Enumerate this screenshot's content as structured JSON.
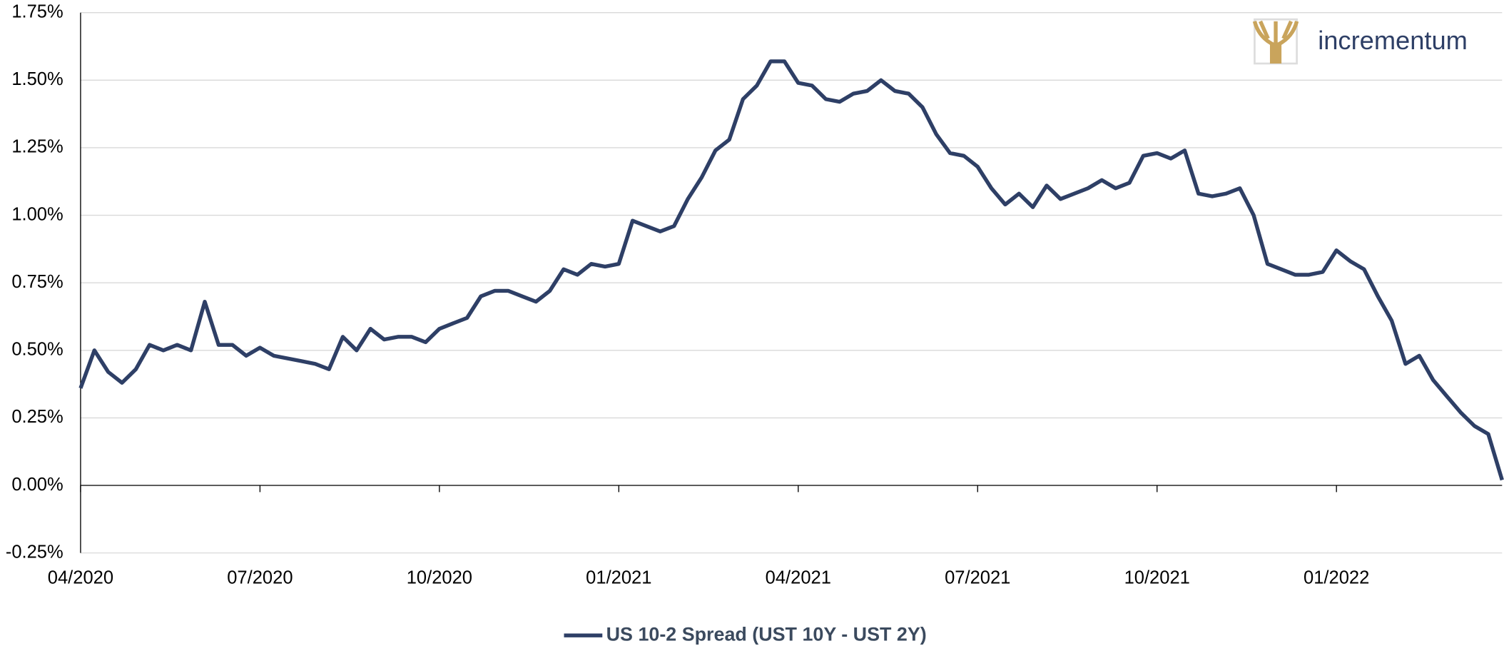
{
  "chart_data": {
    "type": "line",
    "logo": "incrementum",
    "categories": [
      "04/2020",
      null,
      null,
      null,
      null,
      null,
      null,
      null,
      null,
      null,
      null,
      null,
      null,
      "07/2020",
      null,
      null,
      null,
      null,
      null,
      null,
      null,
      null,
      null,
      null,
      null,
      null,
      "10/2020",
      null,
      null,
      null,
      null,
      null,
      null,
      null,
      null,
      null,
      null,
      null,
      null,
      "01/2021",
      null,
      null,
      null,
      null,
      null,
      null,
      null,
      null,
      null,
      null,
      null,
      null,
      "04/2021",
      null,
      null,
      null,
      null,
      null,
      null,
      null,
      null,
      null,
      null,
      null,
      null,
      "07/2021",
      null,
      null,
      null,
      null,
      null,
      null,
      null,
      null,
      null,
      null,
      null,
      null,
      "10/2021",
      null,
      null,
      null,
      null,
      null,
      null,
      null,
      null,
      null,
      null,
      null,
      null,
      "01/2022",
      null,
      null,
      null,
      null,
      null,
      null,
      null,
      null,
      null,
      null,
      null,
      null
    ],
    "series": [
      {
        "name": "US 10-2 Spread (UST 10Y - UST 2Y)",
        "color": "#2e3f66",
        "values": [
          0.36,
          0.5,
          0.42,
          0.38,
          0.43,
          0.52,
          0.5,
          0.52,
          0.5,
          0.68,
          0.52,
          0.52,
          0.48,
          0.51,
          0.48,
          0.47,
          0.46,
          0.45,
          0.43,
          0.55,
          0.5,
          0.58,
          0.54,
          0.55,
          0.55,
          0.53,
          0.58,
          0.6,
          0.62,
          0.7,
          0.72,
          0.72,
          0.7,
          0.68,
          0.72,
          0.8,
          0.78,
          0.82,
          0.81,
          0.82,
          0.98,
          0.96,
          0.94,
          0.96,
          1.06,
          1.14,
          1.24,
          1.28,
          1.43,
          1.48,
          1.57,
          1.57,
          1.49,
          1.48,
          1.43,
          1.42,
          1.45,
          1.46,
          1.5,
          1.46,
          1.45,
          1.4,
          1.3,
          1.23,
          1.22,
          1.18,
          1.1,
          1.04,
          1.08,
          1.03,
          1.11,
          1.06,
          1.08,
          1.1,
          1.13,
          1.1,
          1.12,
          1.22,
          1.23,
          1.21,
          1.24,
          1.08,
          1.07,
          1.08,
          1.1,
          1.0,
          0.82,
          0.8,
          0.78,
          0.78,
          0.79,
          0.87,
          0.83,
          0.8,
          0.7,
          0.61,
          0.45,
          0.48,
          0.39,
          0.33,
          0.27,
          0.22,
          0.19,
          0.02
        ]
      }
    ],
    "ylim": [
      -0.25,
      1.75
    ],
    "yticks": [
      {
        "value": -0.25,
        "label": "-0.25%"
      },
      {
        "value": 0,
        "label": "0.00%"
      },
      {
        "value": 0.25,
        "label": "0.25%"
      },
      {
        "value": 0.5,
        "label": "0.50%"
      },
      {
        "value": 0.75,
        "label": "0.75%"
      },
      {
        "value": 1,
        "label": "1.00%"
      },
      {
        "value": 1.25,
        "label": "1.25%"
      },
      {
        "value": 1.5,
        "label": "1.50%"
      },
      {
        "value": 1.75,
        "label": "1.75%"
      }
    ],
    "grid": true
  }
}
